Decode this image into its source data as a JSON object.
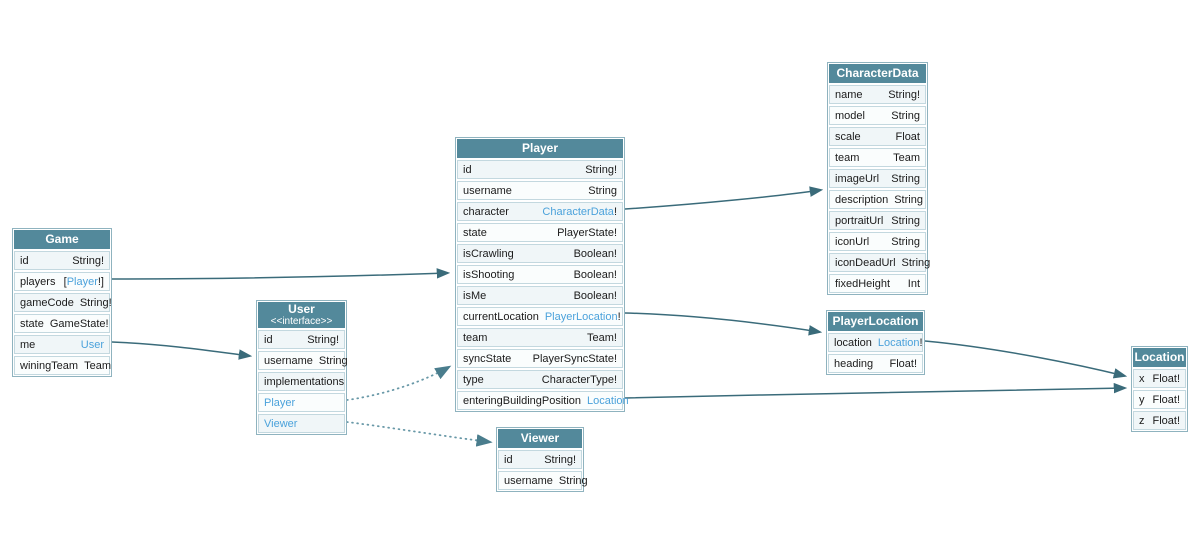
{
  "diagram": {
    "colors": {
      "header": "#53899b",
      "link": "#4ba2db",
      "arrow": "#3a6b7a",
      "arrow_dotted": "#6898a7"
    },
    "tables": [
      {
        "id": "Game",
        "title": "Game",
        "fields": [
          {
            "name": "id",
            "type": [
              {
                "t": "String!"
              }
            ]
          },
          {
            "name": "players",
            "type": [
              {
                "t": "["
              },
              {
                "t": "Player",
                "link": true
              },
              {
                "t": "!]"
              }
            ]
          },
          {
            "name": "gameCode",
            "type": [
              {
                "t": "String!"
              }
            ]
          },
          {
            "name": "state",
            "type": [
              {
                "t": "GameState!"
              }
            ]
          },
          {
            "name": "me",
            "type": [
              {
                "t": "User",
                "link": true
              }
            ]
          },
          {
            "name": "winingTeam",
            "type": [
              {
                "t": "Team"
              }
            ]
          }
        ]
      },
      {
        "id": "User",
        "title": "User",
        "subtitle": "<<interface>>",
        "fields": [
          {
            "name": "id",
            "type": [
              {
                "t": "String!"
              }
            ]
          },
          {
            "name": "username",
            "type": [
              {
                "t": "String"
              }
            ]
          },
          {
            "name": "implementations"
          },
          {
            "name": "Player",
            "link": true
          },
          {
            "name": "Viewer",
            "link": true
          }
        ]
      },
      {
        "id": "Player",
        "title": "Player",
        "fields": [
          {
            "name": "id",
            "type": [
              {
                "t": "String!"
              }
            ]
          },
          {
            "name": "username",
            "type": [
              {
                "t": "String"
              }
            ]
          },
          {
            "name": "character",
            "type": [
              {
                "t": "CharacterData",
                "link": true
              },
              {
                "t": "!"
              }
            ]
          },
          {
            "name": "state",
            "type": [
              {
                "t": "PlayerState!"
              }
            ]
          },
          {
            "name": "isCrawling",
            "type": [
              {
                "t": "Boolean!"
              }
            ]
          },
          {
            "name": "isShooting",
            "type": [
              {
                "t": "Boolean!"
              }
            ]
          },
          {
            "name": "isMe",
            "type": [
              {
                "t": "Boolean!"
              }
            ]
          },
          {
            "name": "currentLocation",
            "type": [
              {
                "t": "PlayerLocation",
                "link": true
              },
              {
                "t": "!"
              }
            ]
          },
          {
            "name": "team",
            "type": [
              {
                "t": "Team!"
              }
            ]
          },
          {
            "name": "syncState",
            "type": [
              {
                "t": "PlayerSyncState!"
              }
            ]
          },
          {
            "name": "type",
            "type": [
              {
                "t": "CharacterType!"
              }
            ]
          },
          {
            "name": "enteringBuildingPosition",
            "type": [
              {
                "t": "Location",
                "link": true
              }
            ]
          }
        ]
      },
      {
        "id": "Viewer",
        "title": "Viewer",
        "fields": [
          {
            "name": "id",
            "type": [
              {
                "t": "String!"
              }
            ]
          },
          {
            "name": "username",
            "type": [
              {
                "t": "String"
              }
            ]
          }
        ]
      },
      {
        "id": "CharacterData",
        "title": "CharacterData",
        "fields": [
          {
            "name": "name",
            "type": [
              {
                "t": "String!"
              }
            ]
          },
          {
            "name": "model",
            "type": [
              {
                "t": "String"
              }
            ]
          },
          {
            "name": "scale",
            "type": [
              {
                "t": "Float"
              }
            ]
          },
          {
            "name": "team",
            "type": [
              {
                "t": "Team"
              }
            ]
          },
          {
            "name": "imageUrl",
            "type": [
              {
                "t": "String"
              }
            ]
          },
          {
            "name": "description",
            "type": [
              {
                "t": "String"
              }
            ]
          },
          {
            "name": "portraitUrl",
            "type": [
              {
                "t": "String"
              }
            ]
          },
          {
            "name": "iconUrl",
            "type": [
              {
                "t": "String"
              }
            ]
          },
          {
            "name": "iconDeadUrl",
            "type": [
              {
                "t": "String"
              }
            ]
          },
          {
            "name": "fixedHeight",
            "type": [
              {
                "t": "Int"
              }
            ]
          }
        ]
      },
      {
        "id": "PlayerLocation",
        "title": "PlayerLocation",
        "fields": [
          {
            "name": "location",
            "type": [
              {
                "t": "Location",
                "link": true
              },
              {
                "t": "!"
              }
            ]
          },
          {
            "name": "heading",
            "type": [
              {
                "t": "Float!"
              }
            ]
          }
        ]
      },
      {
        "id": "Location",
        "title": "Location",
        "fields": [
          {
            "name": "x",
            "type": [
              {
                "t": "Float!"
              }
            ]
          },
          {
            "name": "y",
            "type": [
              {
                "t": "Float!"
              }
            ]
          },
          {
            "name": "z",
            "type": [
              {
                "t": "Float!"
              }
            ]
          }
        ]
      }
    ],
    "edges": [
      {
        "from": "Game.players",
        "to": "Player",
        "kind": "solid"
      },
      {
        "from": "Game.me",
        "to": "User",
        "kind": "solid"
      },
      {
        "from": "Player.character",
        "to": "CharacterData",
        "kind": "solid"
      },
      {
        "from": "Player.currentLocation",
        "to": "PlayerLocation",
        "kind": "solid"
      },
      {
        "from": "Player.enteringBuildingPosition",
        "to": "Location",
        "kind": "solid"
      },
      {
        "from": "PlayerLocation.location",
        "to": "Location",
        "kind": "solid"
      },
      {
        "from": "User.Player",
        "to": "Player",
        "kind": "dotted"
      },
      {
        "from": "User.Viewer",
        "to": "Viewer",
        "kind": "dotted"
      }
    ]
  }
}
